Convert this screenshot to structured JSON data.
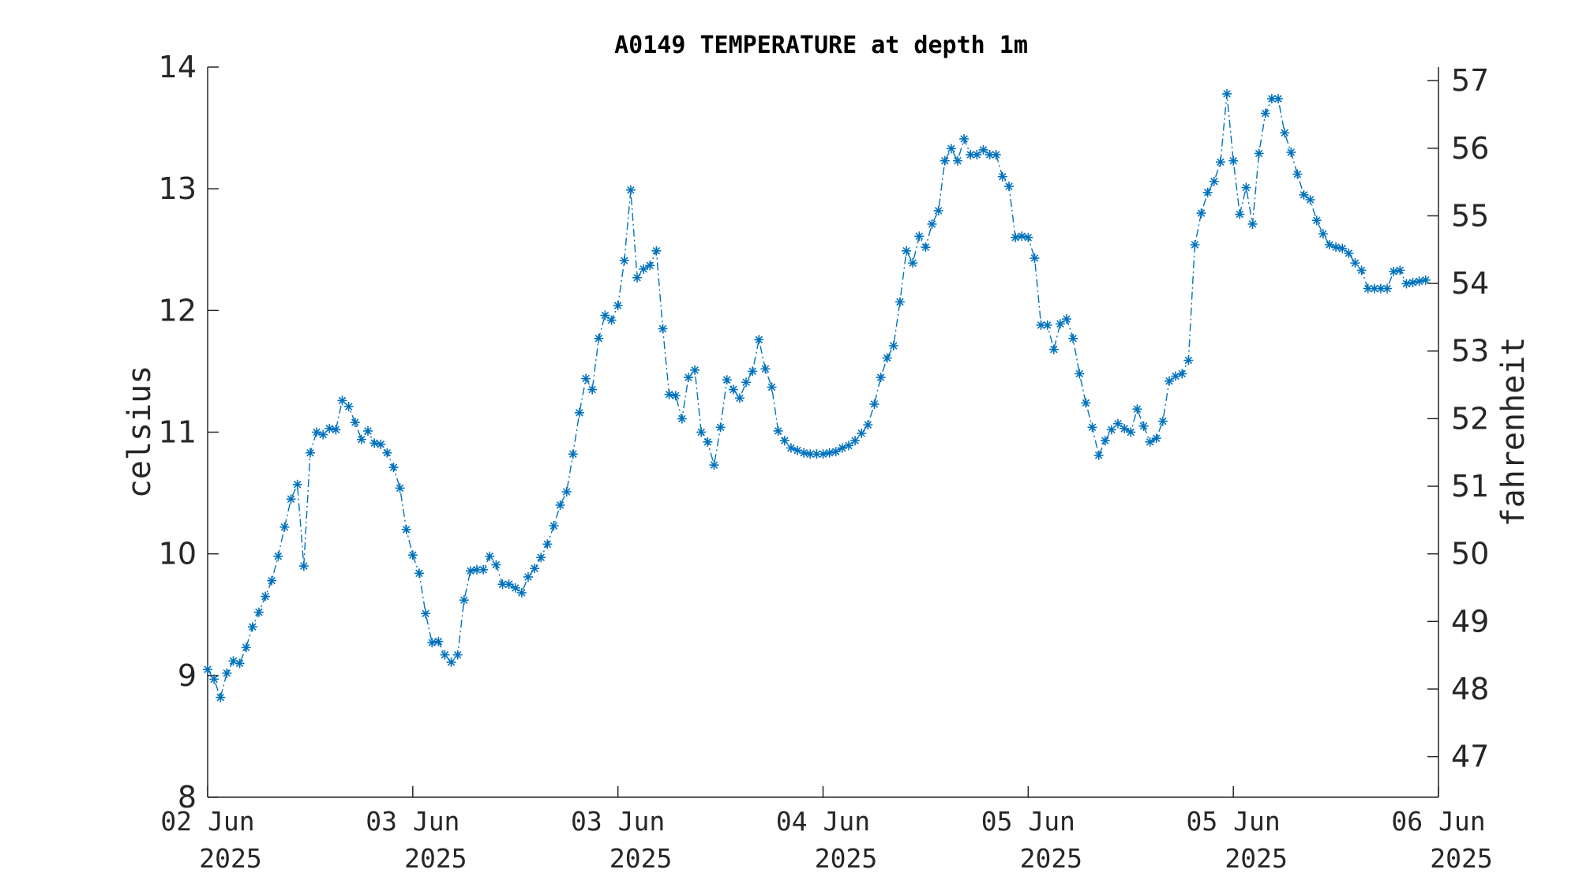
{
  "chart_data": {
    "type": "line",
    "title": "A0149 TEMPERATURE at depth 1m",
    "ylabel": "celsius",
    "ylabel_right": "fahrenheit",
    "xlabel": "",
    "ylim": [
      8,
      14
    ],
    "yticks": [
      8,
      9,
      10,
      11,
      12,
      13,
      14
    ],
    "ylim_right_fahrenheit": [
      46.4,
      57.2
    ],
    "yticks_right": [
      47,
      48,
      49,
      50,
      51,
      52,
      53,
      54,
      55,
      56,
      57
    ],
    "xlim": [
      0,
      192
    ],
    "xticks": [
      {
        "pos": 0,
        "line1": "02 Jun",
        "line2": "2025"
      },
      {
        "pos": 32,
        "line1": "03 Jun",
        "line2": "2025"
      },
      {
        "pos": 64,
        "line1": "03 Jun",
        "line2": "2025"
      },
      {
        "pos": 96,
        "line1": "04 Jun",
        "line2": "2025"
      },
      {
        "pos": 128,
        "line1": "05 Jun",
        "line2": "2025"
      },
      {
        "pos": 160,
        "line1": "05 Jun",
        "line2": "2025"
      },
      {
        "pos": 192,
        "line1": "06 Jun",
        "line2": "2025"
      }
    ],
    "line_style": "dash-dot",
    "marker": "asterisk",
    "color": "#0072BD",
    "grid": false,
    "y": [
      9.05,
      8.97,
      8.82,
      9.02,
      9.12,
      9.1,
      9.23,
      9.4,
      9.52,
      9.65,
      9.78,
      9.98,
      10.22,
      10.45,
      10.57,
      9.9,
      10.83,
      11.0,
      10.98,
      11.03,
      11.02,
      11.26,
      11.21,
      11.08,
      10.94,
      11.01,
      10.91,
      10.9,
      10.83,
      10.71,
      10.54,
      10.2,
      9.99,
      9.84,
      9.51,
      9.27,
      9.28,
      9.17,
      9.11,
      9.17,
      9.62,
      9.86,
      9.87,
      9.87,
      9.98,
      9.91,
      9.75,
      9.75,
      9.72,
      9.68,
      9.81,
      9.88,
      9.97,
      10.08,
      10.23,
      10.4,
      10.51,
      10.82,
      11.16,
      11.44,
      11.35,
      11.77,
      11.96,
      11.92,
      12.04,
      12.41,
      12.99,
      12.27,
      12.34,
      12.37,
      12.49,
      11.85,
      11.31,
      11.3,
      11.11,
      11.45,
      11.51,
      11.0,
      10.92,
      10.73,
      11.04,
      11.43,
      11.35,
      11.28,
      11.41,
      11.5,
      11.76,
      11.52,
      11.37,
      11.01,
      10.93,
      10.87,
      10.85,
      10.83,
      10.82,
      10.82,
      10.82,
      10.83,
      10.84,
      10.87,
      10.89,
      10.93,
      10.99,
      11.06,
      11.23,
      11.45,
      11.61,
      11.71,
      12.07,
      12.49,
      12.39,
      12.61,
      12.52,
      12.71,
      12.82,
      13.23,
      13.33,
      13.23,
      13.41,
      13.28,
      13.28,
      13.32,
      13.28,
      13.28,
      13.1,
      13.02,
      12.6,
      12.61,
      12.6,
      12.43,
      11.88,
      11.88,
      11.68,
      11.89,
      11.93,
      11.77,
      11.48,
      11.24,
      11.04,
      10.81,
      10.93,
      11.02,
      11.07,
      11.03,
      11.0,
      11.19,
      11.05,
      10.92,
      10.95,
      11.09,
      11.42,
      11.46,
      11.48,
      11.59,
      12.54,
      12.8,
      12.97,
      13.06,
      13.22,
      13.78,
      13.23,
      12.79,
      13.01,
      12.71,
      13.29,
      13.62,
      13.74,
      13.74,
      13.46,
      13.3,
      13.12,
      12.95,
      12.91,
      12.74,
      12.63,
      12.54,
      12.52,
      12.51,
      12.47,
      12.39,
      12.33,
      12.18,
      12.18,
      12.18,
      12.18,
      12.32,
      12.33,
      12.22,
      12.23,
      12.24,
      12.25
    ]
  }
}
